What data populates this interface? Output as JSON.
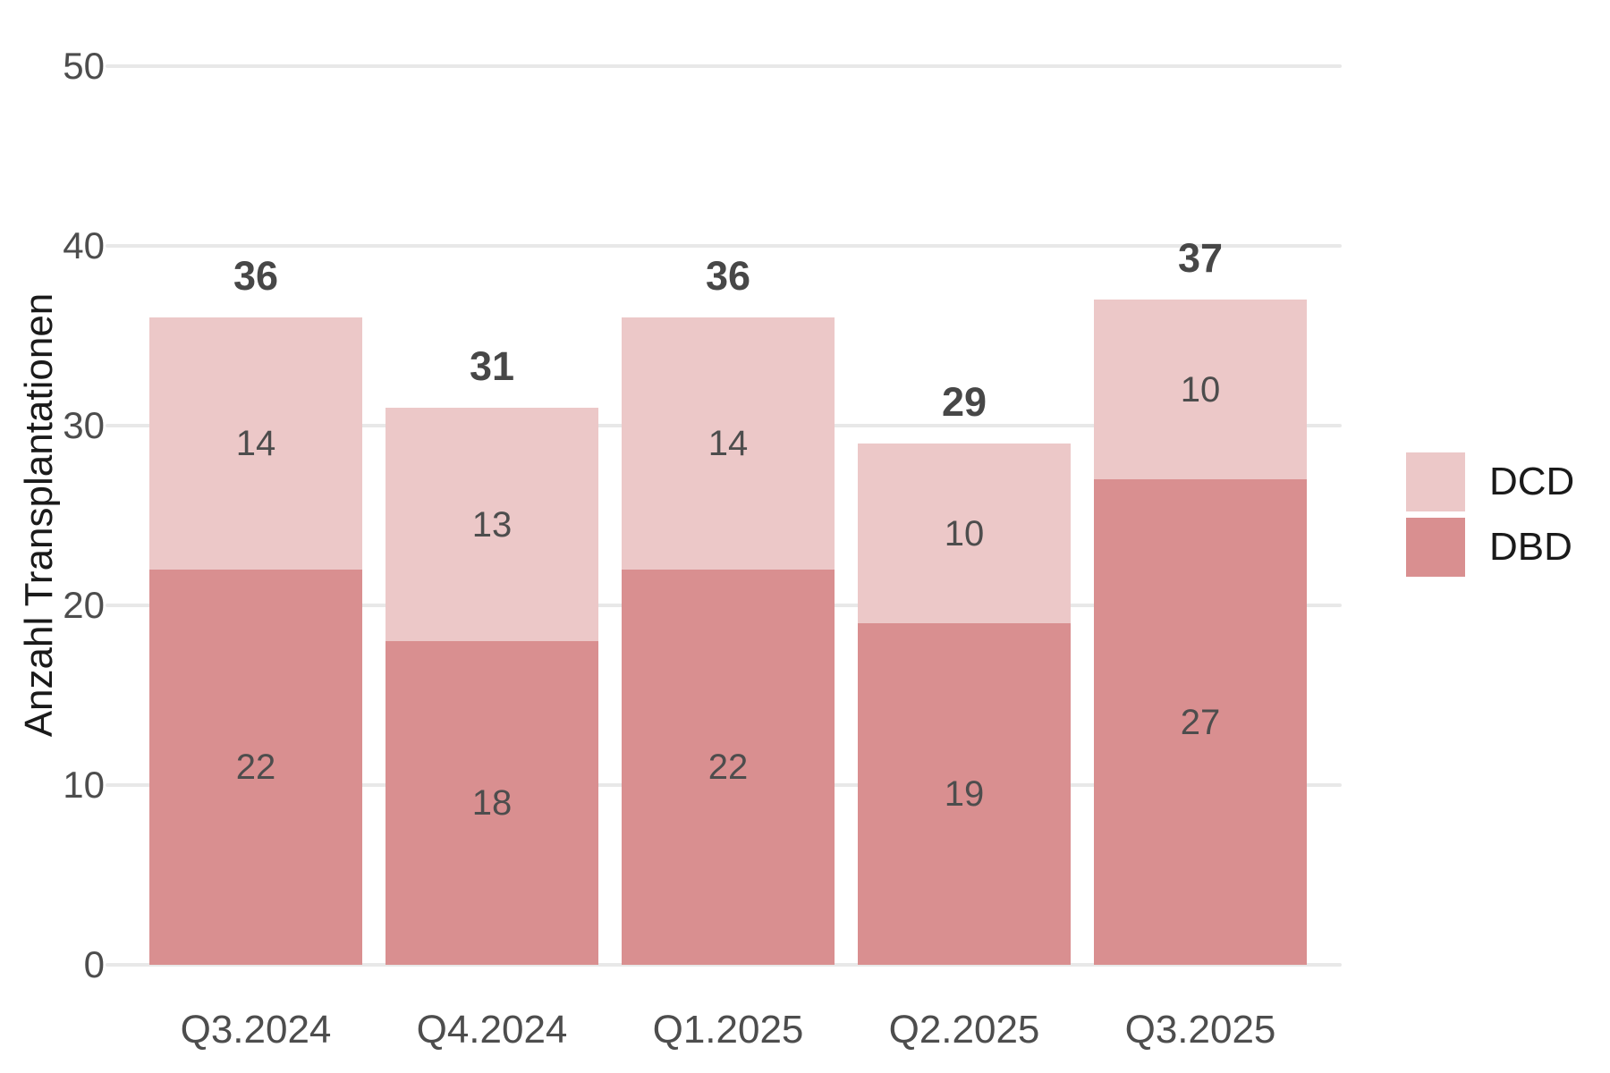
{
  "chart_data": {
    "type": "bar",
    "subtype": "stacked",
    "title": "",
    "xlabel": "",
    "ylabel": "Anzahl Transplantationen",
    "categories": [
      "Q3.2024",
      "Q4.2024",
      "Q1.2025",
      "Q2.2025",
      "Q3.2025"
    ],
    "series": [
      {
        "name": "DBD",
        "color": "#d98f90",
        "values": [
          22,
          18,
          22,
          19,
          27
        ]
      },
      {
        "name": "DCD",
        "color": "#ecc8c8",
        "values": [
          14,
          13,
          14,
          10,
          10
        ]
      }
    ],
    "totals": [
      36,
      31,
      36,
      29,
      37
    ],
    "ylim": [
      0,
      50
    ],
    "yticks": [
      0,
      10,
      20,
      30,
      40,
      50
    ],
    "grid": "horizontal-only",
    "legend_position": "right",
    "legend": [
      {
        "label": "DCD",
        "color": "#ecc8c8"
      },
      {
        "label": "DBD",
        "color": "#d98f90"
      }
    ]
  },
  "colors": {
    "background": "#ffffff",
    "gridline": "#e8e8e8",
    "tick_label": "#4d4d4d",
    "segment_label": "#4d4d4d",
    "total_label": "#474747",
    "axis_title": "#1a1a1a",
    "legend_text": "#1a1a1a"
  }
}
